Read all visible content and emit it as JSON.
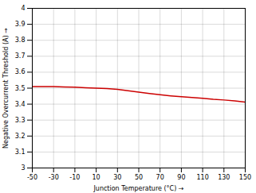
{
  "chart_data": {
    "type": "line",
    "x": [
      -50,
      -40,
      -30,
      -20,
      -10,
      0,
      10,
      20,
      30,
      40,
      50,
      60,
      70,
      80,
      90,
      100,
      110,
      120,
      130,
      140,
      150
    ],
    "values": [
      3.51,
      3.51,
      3.51,
      3.508,
      3.506,
      3.503,
      3.5,
      3.497,
      3.492,
      3.484,
      3.475,
      3.467,
      3.459,
      3.452,
      3.446,
      3.441,
      3.436,
      3.43,
      3.426,
      3.42,
      3.413
    ],
    "color": "#cc0000",
    "line_style": "solid",
    "xlabel": "Junction Temperature (°C)",
    "ylabel": "Negative Overcurrent Threshold (A)",
    "xlim": [
      -50,
      150
    ],
    "ylim": [
      3.0,
      4.0
    ],
    "xticks": [
      -50,
      -30,
      -10,
      10,
      30,
      50,
      70,
      90,
      110,
      130,
      150
    ],
    "yticks": [
      3,
      3.1,
      3.2,
      3.3,
      3.4,
      3.5,
      3.6,
      3.7,
      3.8,
      3.9,
      4
    ],
    "grid": true
  }
}
